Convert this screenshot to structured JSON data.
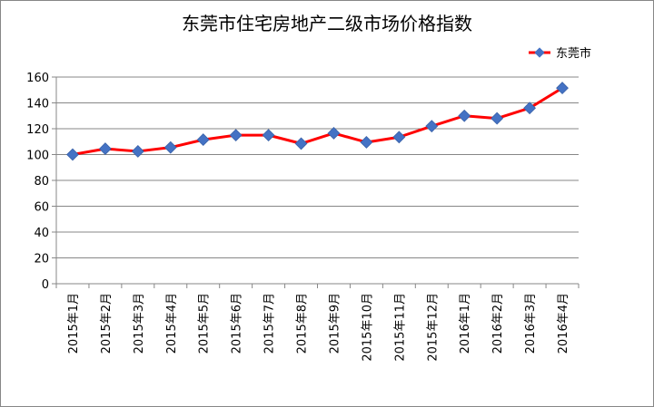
{
  "chart_data": {
    "type": "line",
    "title": "东莞市住宅房地产二级市场价格指数",
    "xlabel": "",
    "ylabel": "",
    "ylim": [
      0,
      160
    ],
    "yticks": [
      0,
      20,
      40,
      60,
      80,
      100,
      120,
      140,
      160
    ],
    "grid": true,
    "legend_position": "top-right",
    "categories": [
      "2015年1月",
      "2015年2月",
      "2015年3月",
      "2015年4月",
      "2015年5月",
      "2015年6月",
      "2015年7月",
      "2015年8月",
      "2015年9月",
      "2015年10月",
      "2015年11月",
      "2015年12月",
      "2016年1月",
      "2016年2月",
      "2016年3月",
      "2016年4月"
    ],
    "series": [
      {
        "name": "东莞市",
        "line_color": "#ff0000",
        "marker_color": "#4472c4",
        "values": [
          100,
          104.5,
          102.5,
          105.5,
          111.5,
          115,
          115,
          108.5,
          116.5,
          109.5,
          113.5,
          122,
          130,
          128,
          136,
          151.5
        ]
      }
    ]
  }
}
